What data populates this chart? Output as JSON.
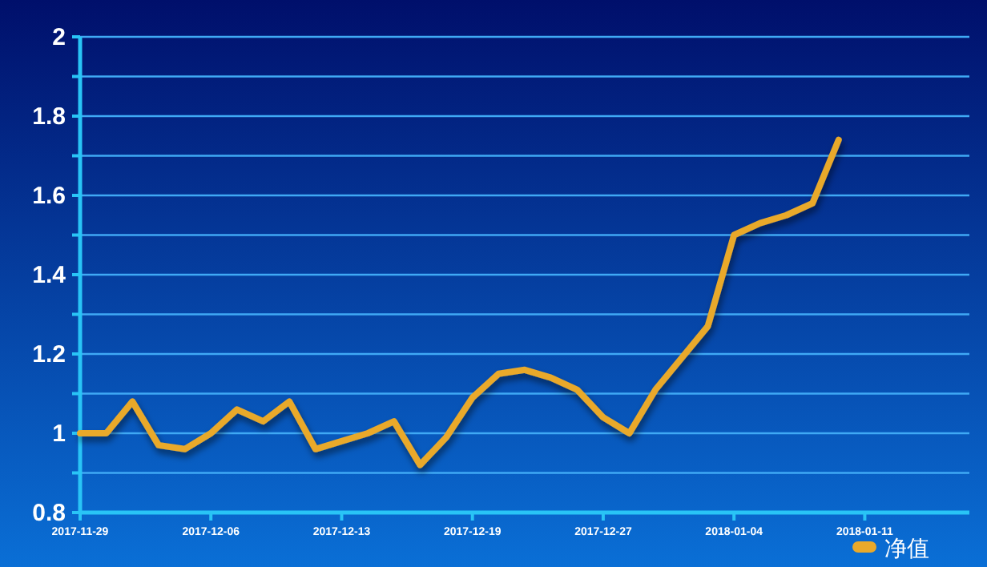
{
  "chart_data": {
    "type": "line",
    "categories": [
      "2017-11-29",
      null,
      null,
      null,
      null,
      "2017-12-06",
      null,
      null,
      null,
      null,
      "2017-12-13",
      null,
      null,
      null,
      null,
      "2017-12-19",
      null,
      null,
      null,
      null,
      "2017-12-27",
      null,
      null,
      null,
      null,
      "2018-01-04",
      null,
      null,
      null,
      null,
      "2018-01-11",
      null,
      null,
      null,
      null
    ],
    "series": [
      {
        "name": "净值",
        "color": "#e9a92b",
        "values": [
          1.0,
          1.0,
          1.08,
          0.97,
          0.96,
          1.0,
          1.06,
          1.03,
          1.08,
          0.96,
          0.98,
          1.0,
          1.03,
          0.92,
          0.99,
          1.09,
          1.15,
          1.16,
          1.14,
          1.11,
          1.04,
          1.0,
          1.11,
          1.19,
          1.27,
          1.5,
          1.53,
          1.55,
          1.58,
          1.74,
          null,
          null,
          null,
          null,
          null
        ]
      }
    ],
    "ylim": [
      0.8,
      2
    ],
    "yticks": [
      0.8,
      {
        "value": 0.9,
        "label": null
      },
      1,
      {
        "value": 1.1,
        "label": null
      },
      1.2,
      {
        "value": 1.3,
        "label": null
      },
      1.4,
      {
        "value": 1.5,
        "label": null
      },
      1.6,
      {
        "value": 1.7,
        "label": null
      },
      1.8,
      {
        "value": 1.9,
        "label": null
      },
      2
    ],
    "grid": "y",
    "legend": "bottom right",
    "marker": "none",
    "line_style": "solid"
  }
}
